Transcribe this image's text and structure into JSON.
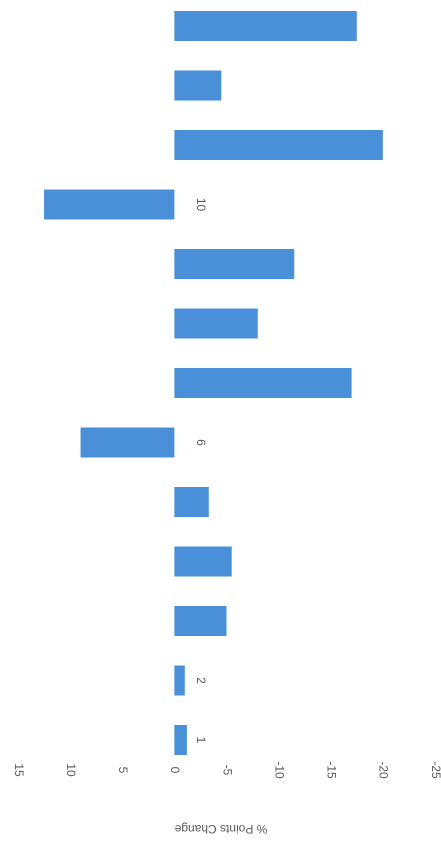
{
  "chart_data": {
    "type": "bar",
    "orientation": "rotated",
    "y_label": "% Points Change",
    "categories": [
      "1",
      "2",
      null,
      null,
      null,
      "6",
      null,
      null,
      null,
      "10",
      null,
      null,
      null
    ],
    "values": [
      -1.2,
      -1,
      -5,
      -5.5,
      -3.3,
      9,
      -17,
      -8,
      -11.5,
      12.5,
      -20,
      -4.5,
      -17.5
    ],
    "color": "#4a90d9",
    "ylim": [
      15,
      -25
    ],
    "yticks": [
      15,
      10,
      5,
      0,
      -5,
      -10,
      -15,
      -20,
      -25
    ]
  }
}
